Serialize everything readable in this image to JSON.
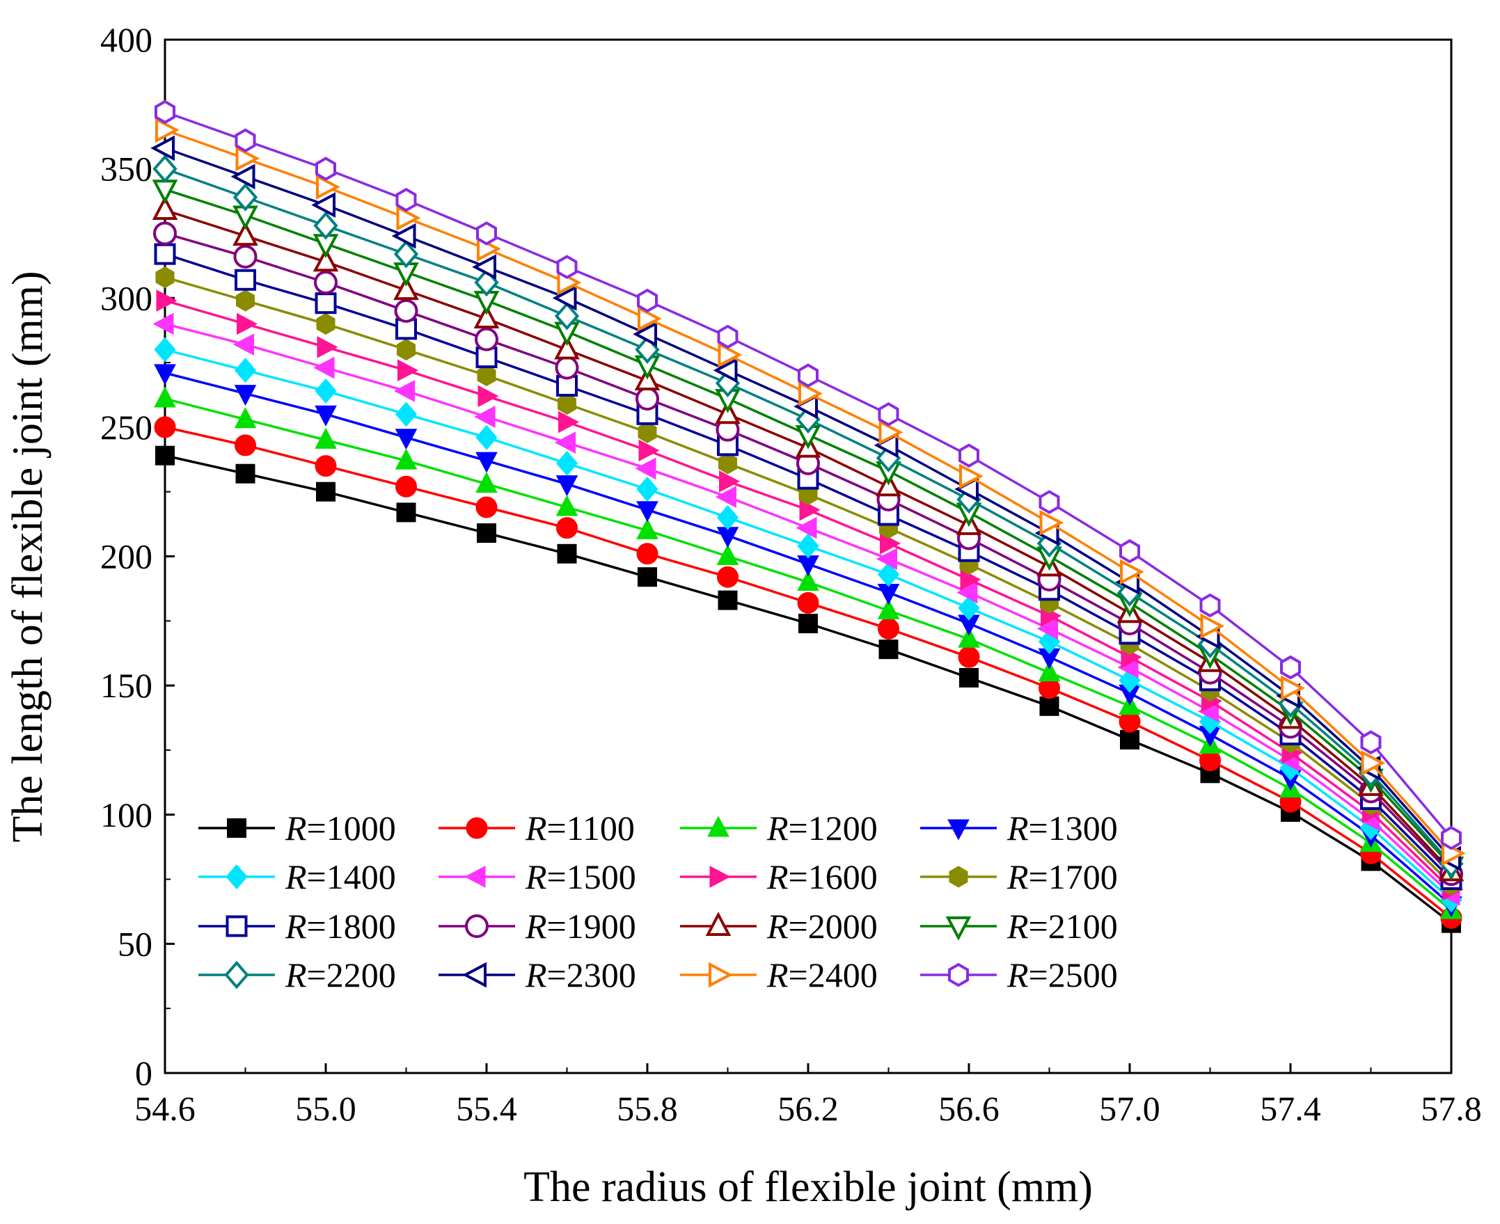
{
  "chart_data": {
    "type": "line",
    "title": "",
    "xlabel": "The radius of flexible joint (mm)",
    "ylabel": "The length of flexible joint (mm)",
    "xlim": [
      54.6,
      57.8
    ],
    "ylim": [
      0,
      400
    ],
    "xticks": [
      "54.6",
      "55.0",
      "55.4",
      "55.8",
      "56.2",
      "56.6",
      "57.0",
      "57.4",
      "57.8"
    ],
    "yticks": [
      "0",
      "50",
      "100",
      "150",
      "200",
      "250",
      "300",
      "350",
      "400"
    ],
    "x": [
      54.6,
      54.8,
      55.0,
      55.2,
      55.4,
      55.6,
      55.8,
      56.0,
      56.2,
      56.4,
      56.6,
      56.8,
      57.0,
      57.2,
      57.4,
      57.6,
      57.8
    ],
    "legend_position": "lower-left (inside plot)",
    "grid": false,
    "series": [
      {
        "name": "R=1000",
        "prefix": "R",
        "suffix": "=1000",
        "color": "#000000",
        "marker": "square",
        "filled": true,
        "values": [
          239,
          232,
          225,
          217,
          209,
          201,
          192,
          183,
          174,
          164,
          153,
          142,
          129,
          116,
          101,
          82,
          58
        ]
      },
      {
        "name": "R=1100",
        "prefix": "R",
        "suffix": "=1100",
        "color": "#ff0000",
        "marker": "circle",
        "filled": true,
        "values": [
          250,
          243,
          235,
          227,
          219,
          211,
          201,
          192,
          182,
          172,
          161,
          149,
          136,
          121,
          105,
          85,
          60
        ]
      },
      {
        "name": "R=1200",
        "prefix": "R",
        "suffix": "=1200",
        "color": "#00e000",
        "marker": "triangle-up",
        "filled": true,
        "values": [
          261,
          253,
          245,
          237,
          228,
          219,
          210,
          200,
          190,
          179,
          168,
          155,
          142,
          127,
          110,
          89,
          63
        ]
      },
      {
        "name": "R=1300",
        "prefix": "R",
        "suffix": "=1300",
        "color": "#0000ff",
        "marker": "triangle-down",
        "filled": true,
        "values": [
          271,
          263,
          255,
          246,
          237,
          228,
          218,
          208,
          197,
          186,
          174,
          161,
          147,
          131,
          114,
          92,
          65
        ]
      },
      {
        "name": "R=1400",
        "prefix": "R",
        "suffix": "=1400",
        "color": "#00e5ff",
        "marker": "diamond",
        "filled": true,
        "values": [
          280,
          272,
          264,
          255,
          246,
          236,
          226,
          215,
          204,
          193,
          180,
          167,
          152,
          136,
          118,
          95,
          67
        ]
      },
      {
        "name": "R=1500",
        "prefix": "R",
        "suffix": "=1500",
        "color": "#ff33ff",
        "marker": "triangle-left",
        "filled": true,
        "values": [
          290,
          282,
          273,
          264,
          254,
          244,
          234,
          223,
          211,
          199,
          186,
          172,
          157,
          140,
          121,
          98,
          69
        ]
      },
      {
        "name": "R=1600",
        "prefix": "R",
        "suffix": "=1600",
        "color": "#ff1493",
        "marker": "triangle-right",
        "filled": true,
        "values": [
          299,
          290,
          281,
          272,
          262,
          252,
          241,
          229,
          218,
          205,
          191,
          177,
          161,
          144,
          124,
          101,
          71
        ]
      },
      {
        "name": "R=1700",
        "prefix": "R",
        "suffix": "=1700",
        "color": "#8b8b00",
        "marker": "hexagon",
        "filled": true,
        "values": [
          308,
          299,
          290,
          280,
          270,
          259,
          248,
          236,
          224,
          211,
          197,
          182,
          166,
          148,
          128,
          104,
          73
        ]
      },
      {
        "name": "R=1800",
        "prefix": "R",
        "suffix": "=1800",
        "color": "#000099",
        "marker": "square",
        "filled": false,
        "values": [
          317,
          307,
          298,
          288,
          277,
          266,
          255,
          243,
          230,
          216,
          202,
          187,
          170,
          152,
          131,
          106,
          75
        ]
      },
      {
        "name": "R=1900",
        "prefix": "R",
        "suffix": "=1900",
        "color": "#800080",
        "marker": "circle",
        "filled": false,
        "values": [
          325,
          316,
          306,
          295,
          284,
          273,
          261,
          249,
          236,
          222,
          207,
          191,
          174,
          155,
          134,
          109,
          77
        ]
      },
      {
        "name": "R=2000",
        "prefix": "R",
        "suffix": "=2000",
        "color": "#8b0000",
        "marker": "triangle-up",
        "filled": false,
        "values": [
          334,
          324,
          314,
          303,
          292,
          280,
          268,
          255,
          242,
          227,
          212,
          196,
          178,
          159,
          137,
          111,
          78
        ]
      },
      {
        "name": "R=2100",
        "prefix": "R",
        "suffix": "=2100",
        "color": "#008000",
        "marker": "triangle-down",
        "filled": false,
        "values": [
          342,
          332,
          321,
          310,
          299,
          287,
          274,
          261,
          247,
          233,
          217,
          200,
          182,
          162,
          140,
          114,
          80
        ]
      },
      {
        "name": "R=2200",
        "prefix": "R",
        "suffix": "=2200",
        "color": "#008080",
        "marker": "diamond",
        "filled": false,
        "values": [
          350,
          339,
          328,
          317,
          306,
          293,
          280,
          267,
          253,
          238,
          222,
          205,
          186,
          166,
          143,
          116,
          81
        ]
      },
      {
        "name": "R=2300",
        "prefix": "R",
        "suffix": "=2300",
        "color": "#000080",
        "marker": "triangle-left",
        "filled": false,
        "values": [
          358,
          347,
          336,
          324,
          312,
          300,
          286,
          272,
          258,
          243,
          226,
          209,
          190,
          169,
          146,
          118,
          83
        ]
      },
      {
        "name": "R=2400",
        "prefix": "R",
        "suffix": "=2400",
        "color": "#ff8000",
        "marker": "triangle-right",
        "filled": false,
        "values": [
          365,
          354,
          343,
          331,
          319,
          306,
          292,
          278,
          263,
          248,
          231,
          213,
          194,
          173,
          149,
          120,
          85
        ]
      },
      {
        "name": "R=2500",
        "prefix": "R",
        "suffix": "=2500",
        "color": "#8a2be2",
        "marker": "hexagon",
        "filled": false,
        "values": [
          372,
          361,
          350,
          338,
          325,
          312,
          299,
          285,
          270,
          255,
          239,
          221,
          202,
          181,
          157,
          128,
          91
        ]
      }
    ]
  }
}
